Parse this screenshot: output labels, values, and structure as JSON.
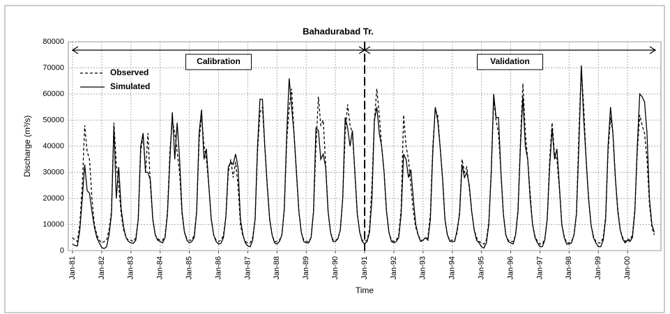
{
  "chart_data": {
    "type": "line",
    "title": "Bahadurabad Tr.",
    "x_label": "Time",
    "y_label": "Discharge (m³/s)",
    "categories": [
      "Jan-81",
      null,
      null,
      null,
      null,
      null,
      null,
      null,
      null,
      null,
      null,
      null,
      "Jan-82",
      null,
      null,
      null,
      null,
      null,
      null,
      null,
      null,
      null,
      null,
      null,
      "Jan-83",
      null,
      null,
      null,
      null,
      null,
      null,
      null,
      null,
      null,
      null,
      null,
      "Jan-84",
      null,
      null,
      null,
      null,
      null,
      null,
      null,
      null,
      null,
      null,
      null,
      "Jan-85",
      null,
      null,
      null,
      null,
      null,
      null,
      null,
      null,
      null,
      null,
      null,
      "Jan-86",
      null,
      null,
      null,
      null,
      null,
      null,
      null,
      null,
      null,
      null,
      null,
      "Jan-87",
      null,
      null,
      null,
      null,
      null,
      null,
      null,
      null,
      null,
      null,
      null,
      "Jan-88",
      null,
      null,
      null,
      null,
      null,
      null,
      null,
      null,
      null,
      null,
      null,
      "Jan-89",
      null,
      null,
      null,
      null,
      null,
      null,
      null,
      null,
      null,
      null,
      null,
      "Jan-90",
      null,
      null,
      null,
      null,
      null,
      null,
      null,
      null,
      null,
      null,
      null,
      "Jan-91",
      null,
      null,
      null,
      null,
      null,
      null,
      null,
      null,
      null,
      null,
      null,
      "Jan-92",
      null,
      null,
      null,
      null,
      null,
      null,
      null,
      null,
      null,
      null,
      null,
      "Jan-93",
      null,
      null,
      null,
      null,
      null,
      null,
      null,
      null,
      null,
      null,
      null,
      "Jan-94",
      null,
      null,
      null,
      null,
      null,
      null,
      null,
      null,
      null,
      null,
      null,
      "Jan-95",
      null,
      null,
      null,
      null,
      null,
      null,
      null,
      null,
      null,
      null,
      null,
      "Jan-96",
      null,
      null,
      null,
      null,
      null,
      null,
      null,
      null,
      null,
      null,
      null,
      "Jan-97",
      null,
      null,
      null,
      null,
      null,
      null,
      null,
      null,
      null,
      null,
      null,
      "Jan-98",
      null,
      null,
      null,
      null,
      null,
      null,
      null,
      null,
      null,
      null,
      null,
      "Jan-99",
      null,
      null,
      null,
      null,
      null,
      null,
      null,
      null,
      null,
      null,
      null,
      "Jan-00",
      null,
      null,
      null,
      null,
      null,
      null,
      null,
      null,
      null,
      null,
      null
    ],
    "series": [
      {
        "name": "Observed",
        "color": "#000000",
        "line_style": "dashed",
        "values": [
          5000,
          4000,
          3500,
          10000,
          25000,
          48000,
          38000,
          35000,
          20000,
          10000,
          6000,
          4000,
          3000,
          3500,
          4000,
          8000,
          15000,
          49000,
          33000,
          25000,
          14000,
          8000,
          5000,
          4000,
          4000,
          3500,
          5000,
          12000,
          38000,
          44000,
          30000,
          45000,
          25000,
          12000,
          6000,
          4500,
          4000,
          4000,
          5500,
          15000,
          38000,
          50000,
          45000,
          38000,
          30000,
          14000,
          7000,
          4500,
          4000,
          4000,
          6000,
          15000,
          42000,
          52000,
          40000,
          35000,
          25000,
          12000,
          6000,
          4000,
          3500,
          4000,
          6000,
          13000,
          30000,
          35000,
          28000,
          34000,
          25000,
          10000,
          5500,
          3500,
          3000,
          3000,
          5000,
          12000,
          38000,
          53000,
          55000,
          40000,
          25000,
          12000,
          6000,
          3500,
          3500,
          4000,
          6000,
          16000,
          42000,
          55000,
          62000,
          45000,
          30000,
          15000,
          7000,
          4000,
          3500,
          3500,
          5000,
          15000,
          40000,
          59000,
          48000,
          50000,
          33000,
          15000,
          7000,
          4000,
          4000,
          4500,
          8000,
          20000,
          45000,
          56000,
          48000,
          45000,
          30000,
          14000,
          7000,
          4000,
          3500,
          4000,
          8000,
          25000,
          50000,
          62000,
          52000,
          40000,
          30000,
          15000,
          7000,
          4000,
          3500,
          4000,
          6000,
          16000,
          52000,
          40000,
          35000,
          25000,
          15000,
          9000,
          6000,
          4000,
          4000,
          4500,
          5000,
          14000,
          40000,
          54000,
          52000,
          40000,
          28000,
          12000,
          6000,
          4000,
          4000,
          4000,
          7000,
          15000,
          35000,
          30000,
          32000,
          24000,
          15000,
          8000,
          5000,
          3500,
          3000,
          2500,
          4000,
          11000,
          30000,
          58000,
          50000,
          45000,
          30000,
          14000,
          6000,
          4000,
          3500,
          3500,
          6000,
          16000,
          42000,
          64000,
          45000,
          35000,
          22000,
          10000,
          5500,
          3500,
          2500,
          2500,
          4500,
          12000,
          35000,
          49000,
          37000,
          35000,
          24000,
          10000,
          5500,
          3000,
          3000,
          3500,
          6000,
          14000,
          45000,
          70000,
          55000,
          35000,
          20000,
          10000,
          5500,
          3500,
          3000,
          3000,
          5000,
          13000,
          38000,
          51000,
          45000,
          28000,
          16000,
          8000,
          5000,
          3500,
          4500,
          4000,
          6000,
          16000,
          38000,
          52000,
          48000,
          45000,
          35000,
          18000,
          9000,
          6000
        ]
      },
      {
        "name": "Simulated",
        "color": "#000000",
        "line_style": "solid",
        "values": [
          2500,
          2000,
          1800,
          8000,
          20000,
          33000,
          23000,
          22000,
          15000,
          9000,
          5000,
          3000,
          1200,
          800,
          1500,
          6000,
          14000,
          48000,
          20000,
          32000,
          16000,
          9000,
          5000,
          3500,
          3000,
          2800,
          4000,
          12000,
          40000,
          45000,
          30000,
          30000,
          27000,
          12000,
          6000,
          4000,
          3500,
          3000,
          5000,
          14000,
          35000,
          53000,
          35000,
          49000,
          35000,
          15000,
          7000,
          4000,
          3000,
          3500,
          5000,
          15000,
          45000,
          54000,
          35000,
          39000,
          25000,
          12000,
          6000,
          3500,
          2500,
          2800,
          5000,
          13000,
          32000,
          34000,
          33000,
          37000,
          32000,
          12000,
          6000,
          3000,
          1800,
          1500,
          4000,
          12000,
          40000,
          58000,
          58000,
          40000,
          25000,
          12000,
          6000,
          3000,
          2500,
          3500,
          6000,
          16000,
          45000,
          66000,
          55000,
          45000,
          30000,
          15000,
          7000,
          3500,
          3000,
          3000,
          5000,
          15000,
          47000,
          46000,
          35000,
          37000,
          32000,
          15000,
          7000,
          3500,
          3500,
          4500,
          8000,
          20000,
          51000,
          47000,
          40000,
          46000,
          30000,
          14000,
          7000,
          3500,
          2500,
          3500,
          7000,
          20000,
          50000,
          55000,
          45000,
          40000,
          30000,
          15000,
          7000,
          3500,
          3000,
          3500,
          5000,
          14000,
          37000,
          35000,
          28000,
          31000,
          20000,
          10000,
          6000,
          3500,
          4000,
          5000,
          4000,
          12000,
          38000,
          55000,
          50000,
          40000,
          28000,
          12000,
          6000,
          3500,
          3500,
          3500,
          8000,
          14000,
          33000,
          28000,
          30000,
          25000,
          15000,
          8000,
          4000,
          3000,
          1500,
          1000,
          3000,
          10000,
          30000,
          60000,
          51000,
          51000,
          30000,
          14000,
          6000,
          3500,
          3000,
          2500,
          6000,
          15000,
          40000,
          59000,
          40000,
          35000,
          20000,
          10000,
          5000,
          3000,
          1500,
          1500,
          4000,
          12000,
          32000,
          47000,
          35000,
          39000,
          25000,
          10000,
          5000,
          2500,
          2500,
          3000,
          6000,
          14000,
          40000,
          71000,
          50000,
          35000,
          20000,
          10000,
          5000,
          3000,
          1500,
          1500,
          4000,
          12000,
          40000,
          55000,
          45000,
          28000,
          15000,
          8000,
          4500,
          3000,
          4000,
          3500,
          5000,
          15000,
          40000,
          60000,
          59000,
          57000,
          45000,
          20000,
          10000,
          7000
        ]
      }
    ],
    "ylim": [
      0,
      80000
    ],
    "yticks": [
      0,
      10000,
      20000,
      30000,
      40000,
      50000,
      60000,
      70000,
      80000
    ],
    "grid": true,
    "legend": "upper left",
    "periods": [
      {
        "label": "Calibration",
        "start": "Jan-81",
        "end": "Jan-91"
      },
      {
        "label": "Validation",
        "start": "Jan-91",
        "end": "Jan-00"
      }
    ]
  }
}
